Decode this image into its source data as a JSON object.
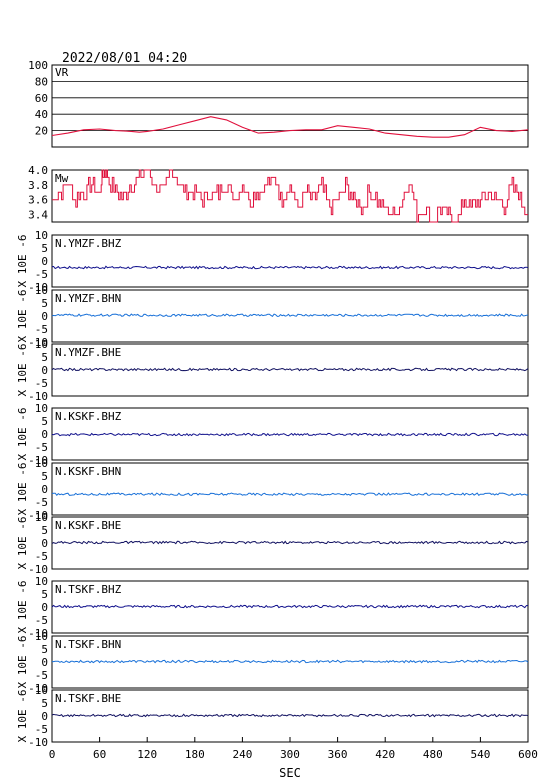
{
  "header": {
    "timestamp": "2022/08/01 04:20"
  },
  "chart_data": {
    "type": "line",
    "xlabel": "SEC",
    "xlim": [
      0,
      600
    ],
    "xticks": [
      "0",
      "60",
      "120",
      "180",
      "240",
      "300",
      "360",
      "420",
      "480",
      "540",
      "600"
    ],
    "colors": {
      "vr": "#e0103c",
      "mw": "#e0103c",
      "bhz": "#10108c",
      "bhn": "#1870d8",
      "bhe": "#101060"
    },
    "vr_panel": {
      "label": "VR",
      "ylim": [
        0,
        100
      ],
      "yticks": [
        "100",
        "80",
        "60",
        "40",
        "20"
      ],
      "gridlines": [
        20,
        40,
        60,
        80
      ],
      "x": [
        0,
        20,
        40,
        60,
        80,
        100,
        110,
        120,
        140,
        160,
        180,
        200,
        220,
        240,
        260,
        280,
        300,
        320,
        340,
        360,
        380,
        400,
        420,
        440,
        460,
        480,
        500,
        520,
        540,
        560,
        580,
        600
      ],
      "values": [
        14,
        17,
        21,
        22,
        20,
        19,
        18,
        19,
        22,
        27,
        32,
        37,
        33,
        24,
        17,
        18,
        20,
        21,
        21,
        26,
        24,
        22,
        17,
        15,
        13,
        12,
        12,
        15,
        24,
        20,
        19,
        21
      ]
    },
    "mw_panel": {
      "label": "Mw",
      "ylim": [
        3.3,
        4.0
      ],
      "yticks": [
        "4.0",
        "3.8",
        "3.6",
        "3.4"
      ],
      "x": [
        0,
        10,
        20,
        30,
        40,
        50,
        60,
        65,
        70,
        80,
        90,
        100,
        110,
        120,
        130,
        140,
        150,
        160,
        170,
        180,
        190,
        200,
        210,
        220,
        230,
        240,
        250,
        260,
        270,
        280,
        290,
        300,
        310,
        320,
        330,
        340,
        350,
        360,
        370,
        380,
        390,
        400,
        410,
        420,
        430,
        440,
        450,
        460,
        470,
        480,
        490,
        500,
        510,
        520,
        530,
        540,
        550,
        560,
        570,
        580,
        590,
        600
      ],
      "values": [
        3.6,
        3.7,
        3.8,
        3.6,
        3.7,
        3.8,
        3.7,
        4.0,
        3.9,
        3.7,
        3.6,
        3.8,
        3.9,
        4.0,
        3.8,
        3.7,
        4.0,
        3.8,
        3.7,
        3.7,
        3.6,
        3.7,
        3.7,
        3.8,
        3.6,
        3.8,
        3.6,
        3.7,
        3.8,
        3.9,
        3.6,
        3.8,
        3.5,
        3.7,
        3.6,
        3.8,
        3.5,
        3.6,
        3.8,
        3.6,
        3.5,
        3.7,
        3.6,
        3.5,
        3.4,
        3.5,
        3.9,
        3.4,
        3.5,
        3.3,
        3.5,
        3.4,
        3.3,
        3.6,
        3.5,
        3.6,
        3.7,
        3.6,
        3.5,
        3.8,
        3.6,
        3.4
      ]
    },
    "wave_panels": [
      {
        "label": "N.YMZF.BHZ",
        "component": "bhz",
        "offset": -2.5
      },
      {
        "label": "N.YMZF.BHN",
        "component": "bhn",
        "offset": 0.3
      },
      {
        "label": "N.YMZF.BHE",
        "component": "bhe",
        "offset": 0.2
      },
      {
        "label": "N.KSKF.BHZ",
        "component": "bhz",
        "offset": -0.2
      },
      {
        "label": "N.KSKF.BHN",
        "component": "bhn",
        "offset": -2.0
      },
      {
        "label": "N.KSKF.BHE",
        "component": "bhe",
        "offset": 0.2
      },
      {
        "label": "N.TSKF.BHZ",
        "component": "bhz",
        "offset": 0.2
      },
      {
        "label": "N.TSKF.BHN",
        "component": "bhn",
        "offset": 0.2
      },
      {
        "label": "N.TSKF.BHE",
        "component": "bhe",
        "offset": 0.2
      }
    ],
    "wave_ylim": [
      -10,
      10
    ],
    "wave_yticks": [
      "10",
      "5",
      "0",
      "-5",
      "-10"
    ],
    "wave_ylabel": "X 10E -6"
  }
}
